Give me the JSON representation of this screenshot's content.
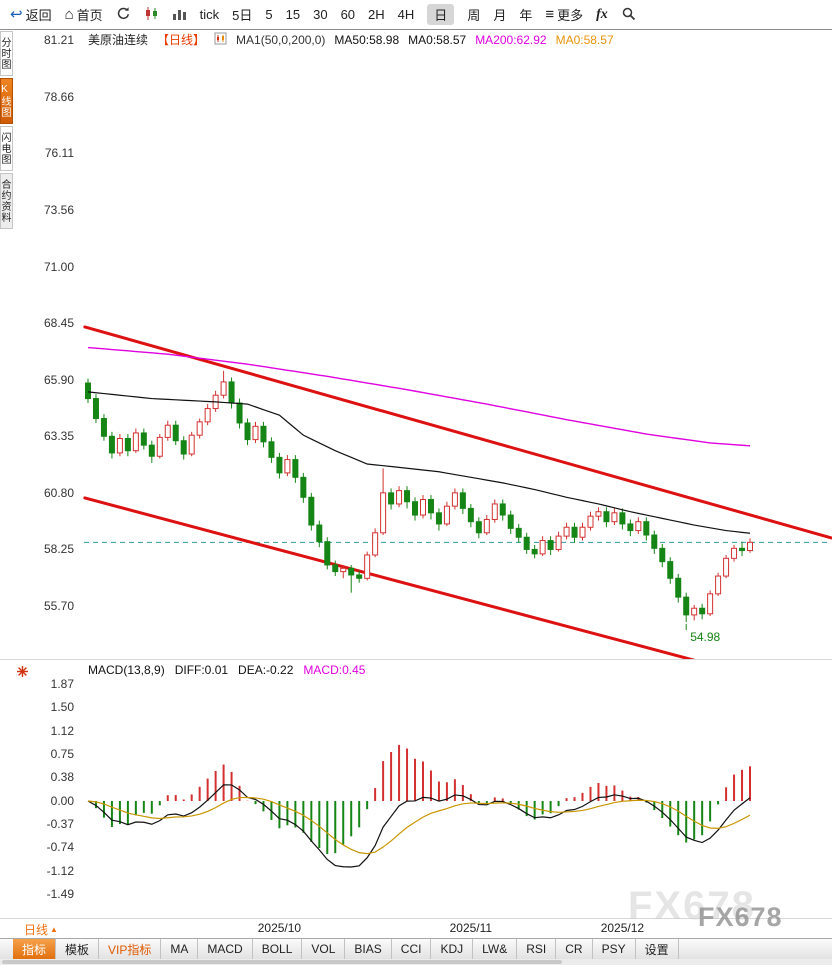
{
  "toolbar": {
    "back_label": "返回",
    "home_label": "首页",
    "periods": [
      "tick",
      "5日",
      "5",
      "15",
      "30",
      "60",
      "2H",
      "4H",
      "日",
      "周",
      "月",
      "年"
    ],
    "selected_period": "日",
    "more_label": "更多",
    "fx_label": "fx"
  },
  "icons": {
    "back": "↩",
    "home": "⌂",
    "menu": "≡",
    "arrow_up": "▲"
  },
  "sidebar": {
    "items": [
      {
        "label": "分时图",
        "state": "normal"
      },
      {
        "label": "K线图",
        "state": "active"
      },
      {
        "label": "闪电图",
        "state": "normal"
      },
      {
        "label": "合约资料",
        "state": "muted"
      }
    ]
  },
  "chart_header": {
    "symbol": "美原油连续",
    "period_tag": "【日线】",
    "ma_settings": "MA1(50,0,200,0)",
    "ma50": "MA50:58.98",
    "ma0": "MA0:58.57",
    "ma200": "MA200:62.92",
    "ma0b": "MA0:58.57"
  },
  "macd_header": {
    "title": "MACD(13,8,9)",
    "diff": "DIFF:0.01",
    "dea": "DEA:-0.22",
    "macd": "MACD:0.45"
  },
  "bottom": {
    "period_label": "日线",
    "tabs": [
      {
        "label": "指标",
        "state": "active"
      },
      {
        "label": "模板",
        "state": "normal"
      },
      {
        "label": "VIP指标",
        "state": "vip"
      },
      {
        "label": "MA",
        "state": "normal"
      },
      {
        "label": "MACD",
        "state": "normal"
      },
      {
        "label": "BOLL",
        "state": "normal"
      },
      {
        "label": "VOL",
        "state": "normal"
      },
      {
        "label": "BIAS",
        "state": "normal"
      },
      {
        "label": "CCI",
        "state": "normal"
      },
      {
        "label": "KDJ",
        "state": "normal"
      },
      {
        "label": "LW&",
        "state": "normal"
      },
      {
        "label": "RSI",
        "state": "normal"
      },
      {
        "label": "CR",
        "state": "normal"
      },
      {
        "label": "PSY",
        "state": "normal"
      },
      {
        "label": "设置",
        "state": "normal"
      }
    ]
  },
  "annotations": {
    "watermark": "FX678"
  },
  "colors": {
    "up": "#d43030",
    "down": "#158515",
    "ma_fast": "#111111",
    "ma_slow": "#e000e0",
    "channel": "#dd1111",
    "last_price": "#2e9aa0",
    "dea": "#c89600",
    "accent": "#e8762c"
  },
  "chart_data": {
    "type": "candlestick",
    "title": "美原油连续 日线",
    "price_ticks": [
      81.21,
      78.66,
      76.11,
      73.56,
      71.0,
      68.45,
      65.9,
      63.35,
      60.8,
      58.25,
      55.7
    ],
    "macd_ticks": [
      1.87,
      1.5,
      1.12,
      0.75,
      0.38,
      0.0,
      -0.37,
      -0.74,
      -1.12,
      -1.49
    ],
    "x_labels": [
      {
        "label": "2025/10",
        "index": 24
      },
      {
        "label": "2025/11",
        "index": 48
      },
      {
        "label": "2025/12",
        "index": 67
      }
    ],
    "last_price_line": 58.57,
    "low_annotation": {
      "index": 75,
      "price": 54.98
    },
    "macd_params": {
      "fast": 8,
      "slow": 13,
      "signal": 9,
      "diff": 0.01,
      "dea": -0.22,
      "macd": 0.45
    },
    "channel_lines": {
      "upper": {
        "i1": -0.4,
        "p1": 68.28,
        "i2": 93.2,
        "p2": 58.77
      },
      "lower": {
        "i1": -0.4,
        "p1": 60.57,
        "i2": 76.8,
        "p2": 53.18
      }
    },
    "ma50_points": [
      [
        0,
        65.35
      ],
      [
        8,
        65.05
      ],
      [
        16,
        64.9
      ],
      [
        20,
        64.8
      ],
      [
        24,
        64.3
      ],
      [
        27,
        63.4
      ],
      [
        31,
        62.7
      ],
      [
        35,
        62.1
      ],
      [
        39,
        61.95
      ],
      [
        44,
        61.75
      ],
      [
        48,
        61.5
      ],
      [
        52,
        61.25
      ],
      [
        56,
        60.95
      ],
      [
        60,
        60.6
      ],
      [
        64,
        60.3
      ],
      [
        68,
        59.95
      ],
      [
        72,
        59.65
      ],
      [
        76,
        59.35
      ],
      [
        80,
        59.1
      ],
      [
        83,
        58.98
      ]
    ],
    "ma200_points": [
      [
        0,
        67.35
      ],
      [
        10,
        67.05
      ],
      [
        20,
        66.6
      ],
      [
        30,
        66.05
      ],
      [
        40,
        65.45
      ],
      [
        50,
        64.8
      ],
      [
        60,
        64.1
      ],
      [
        70,
        63.45
      ],
      [
        78,
        63.05
      ],
      [
        83,
        62.92
      ]
    ],
    "candles_ohlc": [
      [
        65.75,
        65.95,
        64.85,
        65.05
      ],
      [
        65.05,
        65.25,
        63.95,
        64.15
      ],
      [
        64.15,
        64.35,
        63.15,
        63.35
      ],
      [
        63.35,
        63.55,
        62.35,
        62.6
      ],
      [
        62.6,
        63.45,
        62.45,
        63.25
      ],
      [
        63.25,
        63.45,
        62.45,
        62.7
      ],
      [
        62.7,
        63.7,
        62.6,
        63.5
      ],
      [
        63.5,
        63.7,
        62.75,
        62.95
      ],
      [
        62.95,
        63.15,
        62.15,
        62.45
      ],
      [
        62.45,
        63.45,
        62.35,
        63.3
      ],
      [
        63.3,
        64.05,
        63.15,
        63.85
      ],
      [
        63.85,
        64.05,
        62.95,
        63.15
      ],
      [
        63.15,
        63.35,
        62.3,
        62.55
      ],
      [
        62.55,
        63.55,
        62.45,
        63.4
      ],
      [
        63.4,
        64.15,
        63.25,
        64.0
      ],
      [
        64.0,
        64.8,
        63.85,
        64.6
      ],
      [
        64.6,
        65.4,
        64.45,
        65.2
      ],
      [
        65.2,
        66.3,
        65.05,
        65.8
      ],
      [
        65.8,
        66.0,
        64.6,
        64.85
      ],
      [
        64.85,
        65.05,
        63.7,
        63.95
      ],
      [
        63.95,
        64.15,
        62.95,
        63.2
      ],
      [
        63.2,
        64.0,
        63.05,
        63.8
      ],
      [
        63.8,
        64.0,
        62.85,
        63.1
      ],
      [
        63.1,
        63.3,
        62.15,
        62.4
      ],
      [
        62.4,
        62.6,
        61.45,
        61.7
      ],
      [
        61.7,
        62.5,
        61.55,
        62.3
      ],
      [
        62.3,
        62.5,
        61.25,
        61.5
      ],
      [
        61.5,
        61.7,
        60.35,
        60.6
      ],
      [
        60.6,
        60.8,
        59.1,
        59.35
      ],
      [
        59.35,
        59.55,
        58.35,
        58.6
      ],
      [
        58.6,
        58.8,
        57.35,
        57.55
      ],
      [
        57.55,
        57.75,
        57.05,
        57.25
      ],
      [
        57.25,
        57.55,
        56.95,
        57.4
      ],
      [
        57.4,
        57.55,
        56.3,
        57.1
      ],
      [
        57.1,
        57.3,
        56.75,
        56.95
      ],
      [
        56.95,
        58.15,
        56.85,
        58.0
      ],
      [
        58.0,
        59.2,
        57.9,
        59.0
      ],
      [
        59.0,
        61.9,
        58.9,
        60.8
      ],
      [
        60.8,
        61.0,
        60.05,
        60.3
      ],
      [
        60.3,
        61.1,
        60.15,
        60.9
      ],
      [
        60.9,
        61.1,
        60.1,
        60.4
      ],
      [
        60.4,
        60.6,
        59.55,
        59.8
      ],
      [
        59.8,
        60.7,
        59.65,
        60.5
      ],
      [
        60.5,
        60.7,
        59.6,
        59.9
      ],
      [
        59.9,
        60.1,
        59.1,
        59.4
      ],
      [
        59.4,
        60.4,
        59.3,
        60.2
      ],
      [
        60.2,
        61.0,
        60.05,
        60.8
      ],
      [
        60.8,
        61.0,
        59.85,
        60.1
      ],
      [
        60.1,
        60.3,
        59.25,
        59.5
      ],
      [
        59.5,
        59.7,
        58.75,
        59.0
      ],
      [
        59.0,
        59.8,
        58.9,
        59.6
      ],
      [
        59.6,
        60.5,
        59.45,
        60.3
      ],
      [
        60.3,
        60.5,
        59.55,
        59.8
      ],
      [
        59.8,
        60.0,
        58.95,
        59.2
      ],
      [
        59.2,
        59.4,
        58.55,
        58.8
      ],
      [
        58.8,
        59.0,
        58.05,
        58.25
      ],
      [
        58.25,
        58.45,
        57.85,
        58.05
      ],
      [
        58.05,
        58.85,
        57.95,
        58.65
      ],
      [
        58.65,
        58.85,
        58.0,
        58.25
      ],
      [
        58.25,
        59.05,
        58.15,
        58.85
      ],
      [
        58.85,
        59.45,
        58.7,
        59.25
      ],
      [
        59.25,
        59.45,
        58.55,
        58.8
      ],
      [
        58.8,
        59.45,
        58.65,
        59.25
      ],
      [
        59.25,
        59.95,
        59.1,
        59.75
      ],
      [
        59.75,
        60.15,
        59.55,
        59.95
      ],
      [
        59.95,
        60.15,
        59.25,
        59.5
      ],
      [
        59.5,
        60.1,
        59.35,
        59.9
      ],
      [
        59.9,
        60.1,
        59.15,
        59.4
      ],
      [
        59.4,
        59.6,
        58.85,
        59.1
      ],
      [
        59.1,
        59.7,
        58.95,
        59.5
      ],
      [
        59.5,
        59.7,
        58.65,
        58.9
      ],
      [
        58.9,
        59.1,
        58.05,
        58.3
      ],
      [
        58.3,
        58.5,
        57.45,
        57.7
      ],
      [
        57.7,
        57.9,
        56.7,
        56.95
      ],
      [
        56.95,
        57.15,
        55.85,
        56.1
      ],
      [
        56.1,
        56.3,
        54.98,
        55.3
      ],
      [
        55.3,
        55.75,
        55.05,
        55.6
      ],
      [
        55.6,
        55.8,
        55.1,
        55.35
      ],
      [
        55.35,
        56.4,
        55.25,
        56.25
      ],
      [
        56.25,
        57.2,
        56.15,
        57.05
      ],
      [
        57.05,
        58.0,
        56.95,
        57.85
      ],
      [
        57.85,
        58.45,
        57.7,
        58.3
      ],
      [
        58.3,
        58.6,
        57.95,
        58.2
      ],
      [
        58.2,
        58.75,
        58.1,
        58.57
      ]
    ]
  }
}
